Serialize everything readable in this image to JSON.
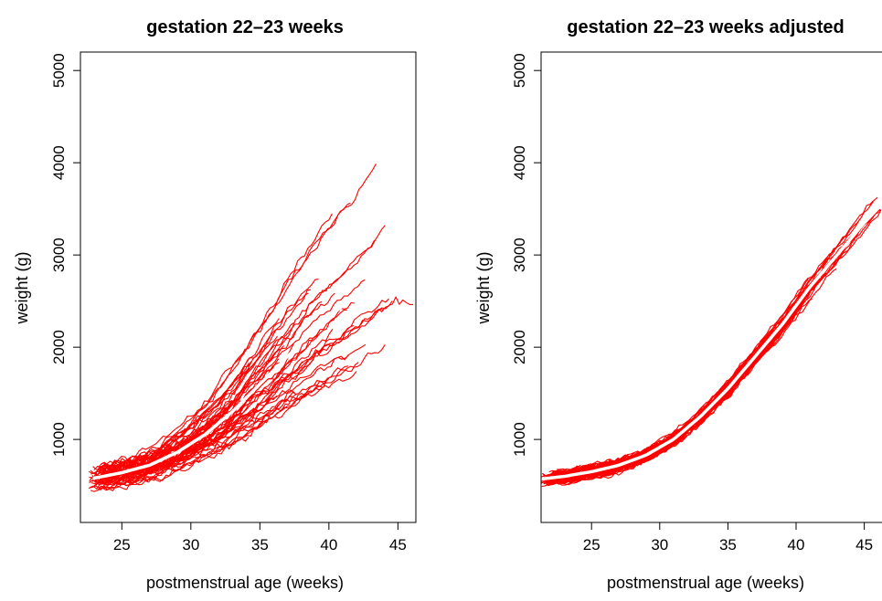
{
  "chart_data": [
    {
      "type": "line",
      "title": "gestation 22–23 weeks",
      "xlabel": "postmenstrual age (weeks)",
      "ylabel": "weight (g)",
      "xlim": [
        22,
        46.3
      ],
      "ylim": [
        100,
        5200
      ],
      "xticks": [
        "25",
        "30",
        "35",
        "40",
        "45"
      ],
      "yticks": [
        "1000",
        "2000",
        "3000",
        "4000",
        "5000"
      ],
      "line_color": "#ff0000",
      "mean_color": "#ffffff",
      "mean_curve": {
        "x": [
          23,
          25,
          27,
          29,
          31,
          33,
          35,
          37,
          39,
          41,
          43,
          45
        ],
        "y": [
          580,
          640,
          720,
          860,
          1050,
          1300,
          1600,
          1900,
          2200,
          2450,
          2700,
          2950
        ]
      },
      "series_note_visible": false,
      "n_trajectories": 60,
      "spread": "wide"
    },
    {
      "type": "line",
      "title": "gestation 22–23 weeks adjusted",
      "xlabel": "postmenstrual age (weeks)",
      "ylabel": "weight (g)",
      "xlim": [
        21.3,
        46.3
      ],
      "ylim": [
        100,
        5200
      ],
      "xticks": [
        "25",
        "30",
        "35",
        "40",
        "45"
      ],
      "yticks": [
        "1000",
        "2000",
        "3000",
        "4000",
        "5000"
      ],
      "line_color": "#ff0000",
      "mean_color": "#ffffff",
      "mean_curve": {
        "x": [
          21.3,
          23,
          25,
          27,
          29,
          31,
          33,
          35,
          37,
          39,
          41,
          43,
          45,
          46.3
        ],
        "y": [
          570,
          600,
          650,
          720,
          830,
          1000,
          1250,
          1550,
          1900,
          2250,
          2650,
          3000,
          3350,
          3550
        ]
      },
      "n_trajectories": 60,
      "spread": "narrow"
    }
  ]
}
